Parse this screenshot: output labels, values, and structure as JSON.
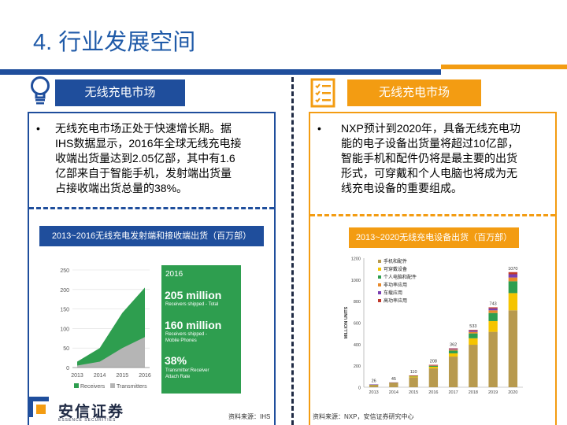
{
  "page": {
    "title": "4. 行业发展空间"
  },
  "left": {
    "header": "无线充电市场",
    "icon": "lightbulb-icon",
    "bullet": "无线充电市场正处于快速增长期。据IHS数据显示，2016年全球无线充电接收端出货量达到2.05亿部，其中有1.6亿部来自于智能手机，发射端出货量占接收端出货总量的38%。",
    "bullet_lines": [
      "无线充电市场正处于快速增长期。据",
      "IHS数据显示，2016年全球无线充电接",
      "收端出货量达到2.05亿部，其中有1.6",
      "亿部来自于智能手机，发射端出货量",
      "占接收端出货总量的38%。"
    ],
    "chart_title": "2013~2016无线充电发射端和接收端出货（百万部）",
    "source": "资料来源：IHS",
    "stats": {
      "year": "2016",
      "big1": "205 million",
      "sub1": "Receivers shipped - Total",
      "big2": "160 million",
      "sub2a": "Receivers shipped -",
      "sub2b": "Mobile Phones",
      "big3": "38%",
      "sub3a": "Transmitter:Receiver",
      "sub3b": "Attach Rate"
    }
  },
  "right": {
    "header": "无线充电市场",
    "icon": "checklist-icon",
    "bullet": "NXP预计到2020年，具备无线充电功能的电子设备出货量将超过10亿部，智能手机和配件仍将是最主要的出货形式，可穿戴和个人电脑也将成为无线充电设备的重要组成。",
    "bullet_lines": [
      "NXP预计到2020年，具备无线充电功",
      "能的电子设备出货量将超过10亿部，",
      "智能手机和配件仍将是最主要的出货",
      "形式，可穿戴和个人电脑也将成为无",
      "线充电设备的重要组成。"
    ],
    "chart_title": "2013~2020无线充电设备出货（百万部）",
    "source": "资料来源：NXP，安信证券研究中心"
  },
  "logo": {
    "name": "安信证券",
    "sub": "ESSENCE SECURITIES"
  },
  "colors": {
    "blue": "#1f4e9c",
    "orange": "#f39c12",
    "green": "#2e9e4f"
  },
  "chart_data": [
    {
      "type": "area",
      "x": [
        2013,
        2014,
        2015,
        2016
      ],
      "series": [
        {
          "name": "Receivers",
          "values": [
            15,
            50,
            140,
            205
          ]
        },
        {
          "name": "Transmitters",
          "values": [
            5,
            15,
            50,
            78
          ]
        }
      ],
      "ylim": [
        0,
        250
      ],
      "yticks": [
        0,
        50,
        100,
        150,
        200,
        250
      ],
      "legend": "bottom"
    },
    {
      "type": "bar",
      "categories": [
        "2013",
        "2014",
        "2015",
        "2016",
        "2017",
        "2018",
        "2019",
        "2020"
      ],
      "totals": [
        26,
        45,
        110,
        208,
        362,
        533,
        743,
        1070
      ],
      "series": [
        {
          "name": "手机和配件",
          "values": [
            22,
            38,
            92,
            175,
            285,
            395,
            515,
            715
          ]
        },
        {
          "name": "可穿戴设备",
          "values": [
            2,
            3,
            8,
            15,
            30,
            60,
            100,
            160
          ]
        },
        {
          "name": "个人电脑和配件",
          "values": [
            1,
            2,
            5,
            8,
            25,
            45,
            75,
            110
          ]
        },
        {
          "name": "非功率应用",
          "values": [
            0,
            1,
            2,
            4,
            10,
            15,
            25,
            35
          ]
        },
        {
          "name": "车载应用",
          "values": [
            1,
            1,
            2,
            4,
            8,
            12,
            18,
            30
          ]
        },
        {
          "name": "高功率应用",
          "values": [
            0,
            0,
            1,
            2,
            4,
            6,
            10,
            20
          ]
        }
      ],
      "colors": [
        "#b89a4e",
        "#f5c400",
        "#2e9e4f",
        "#e8892b",
        "#7a3fb0",
        "#c0392b"
      ],
      "ylabel": "MILLION UNITS",
      "ylim": [
        0,
        1200
      ],
      "yticks": [
        0,
        200,
        400,
        600,
        800,
        1000,
        1200
      ],
      "legend": "top-left"
    }
  ]
}
